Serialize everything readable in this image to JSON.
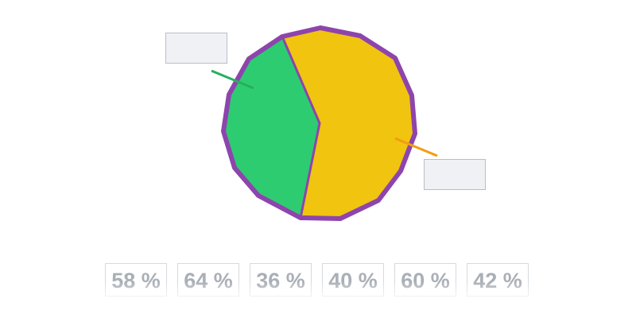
{
  "options": [
    "58 %",
    "64 %",
    "36 %",
    "40 %",
    "60 %",
    "42 %"
  ]
}
